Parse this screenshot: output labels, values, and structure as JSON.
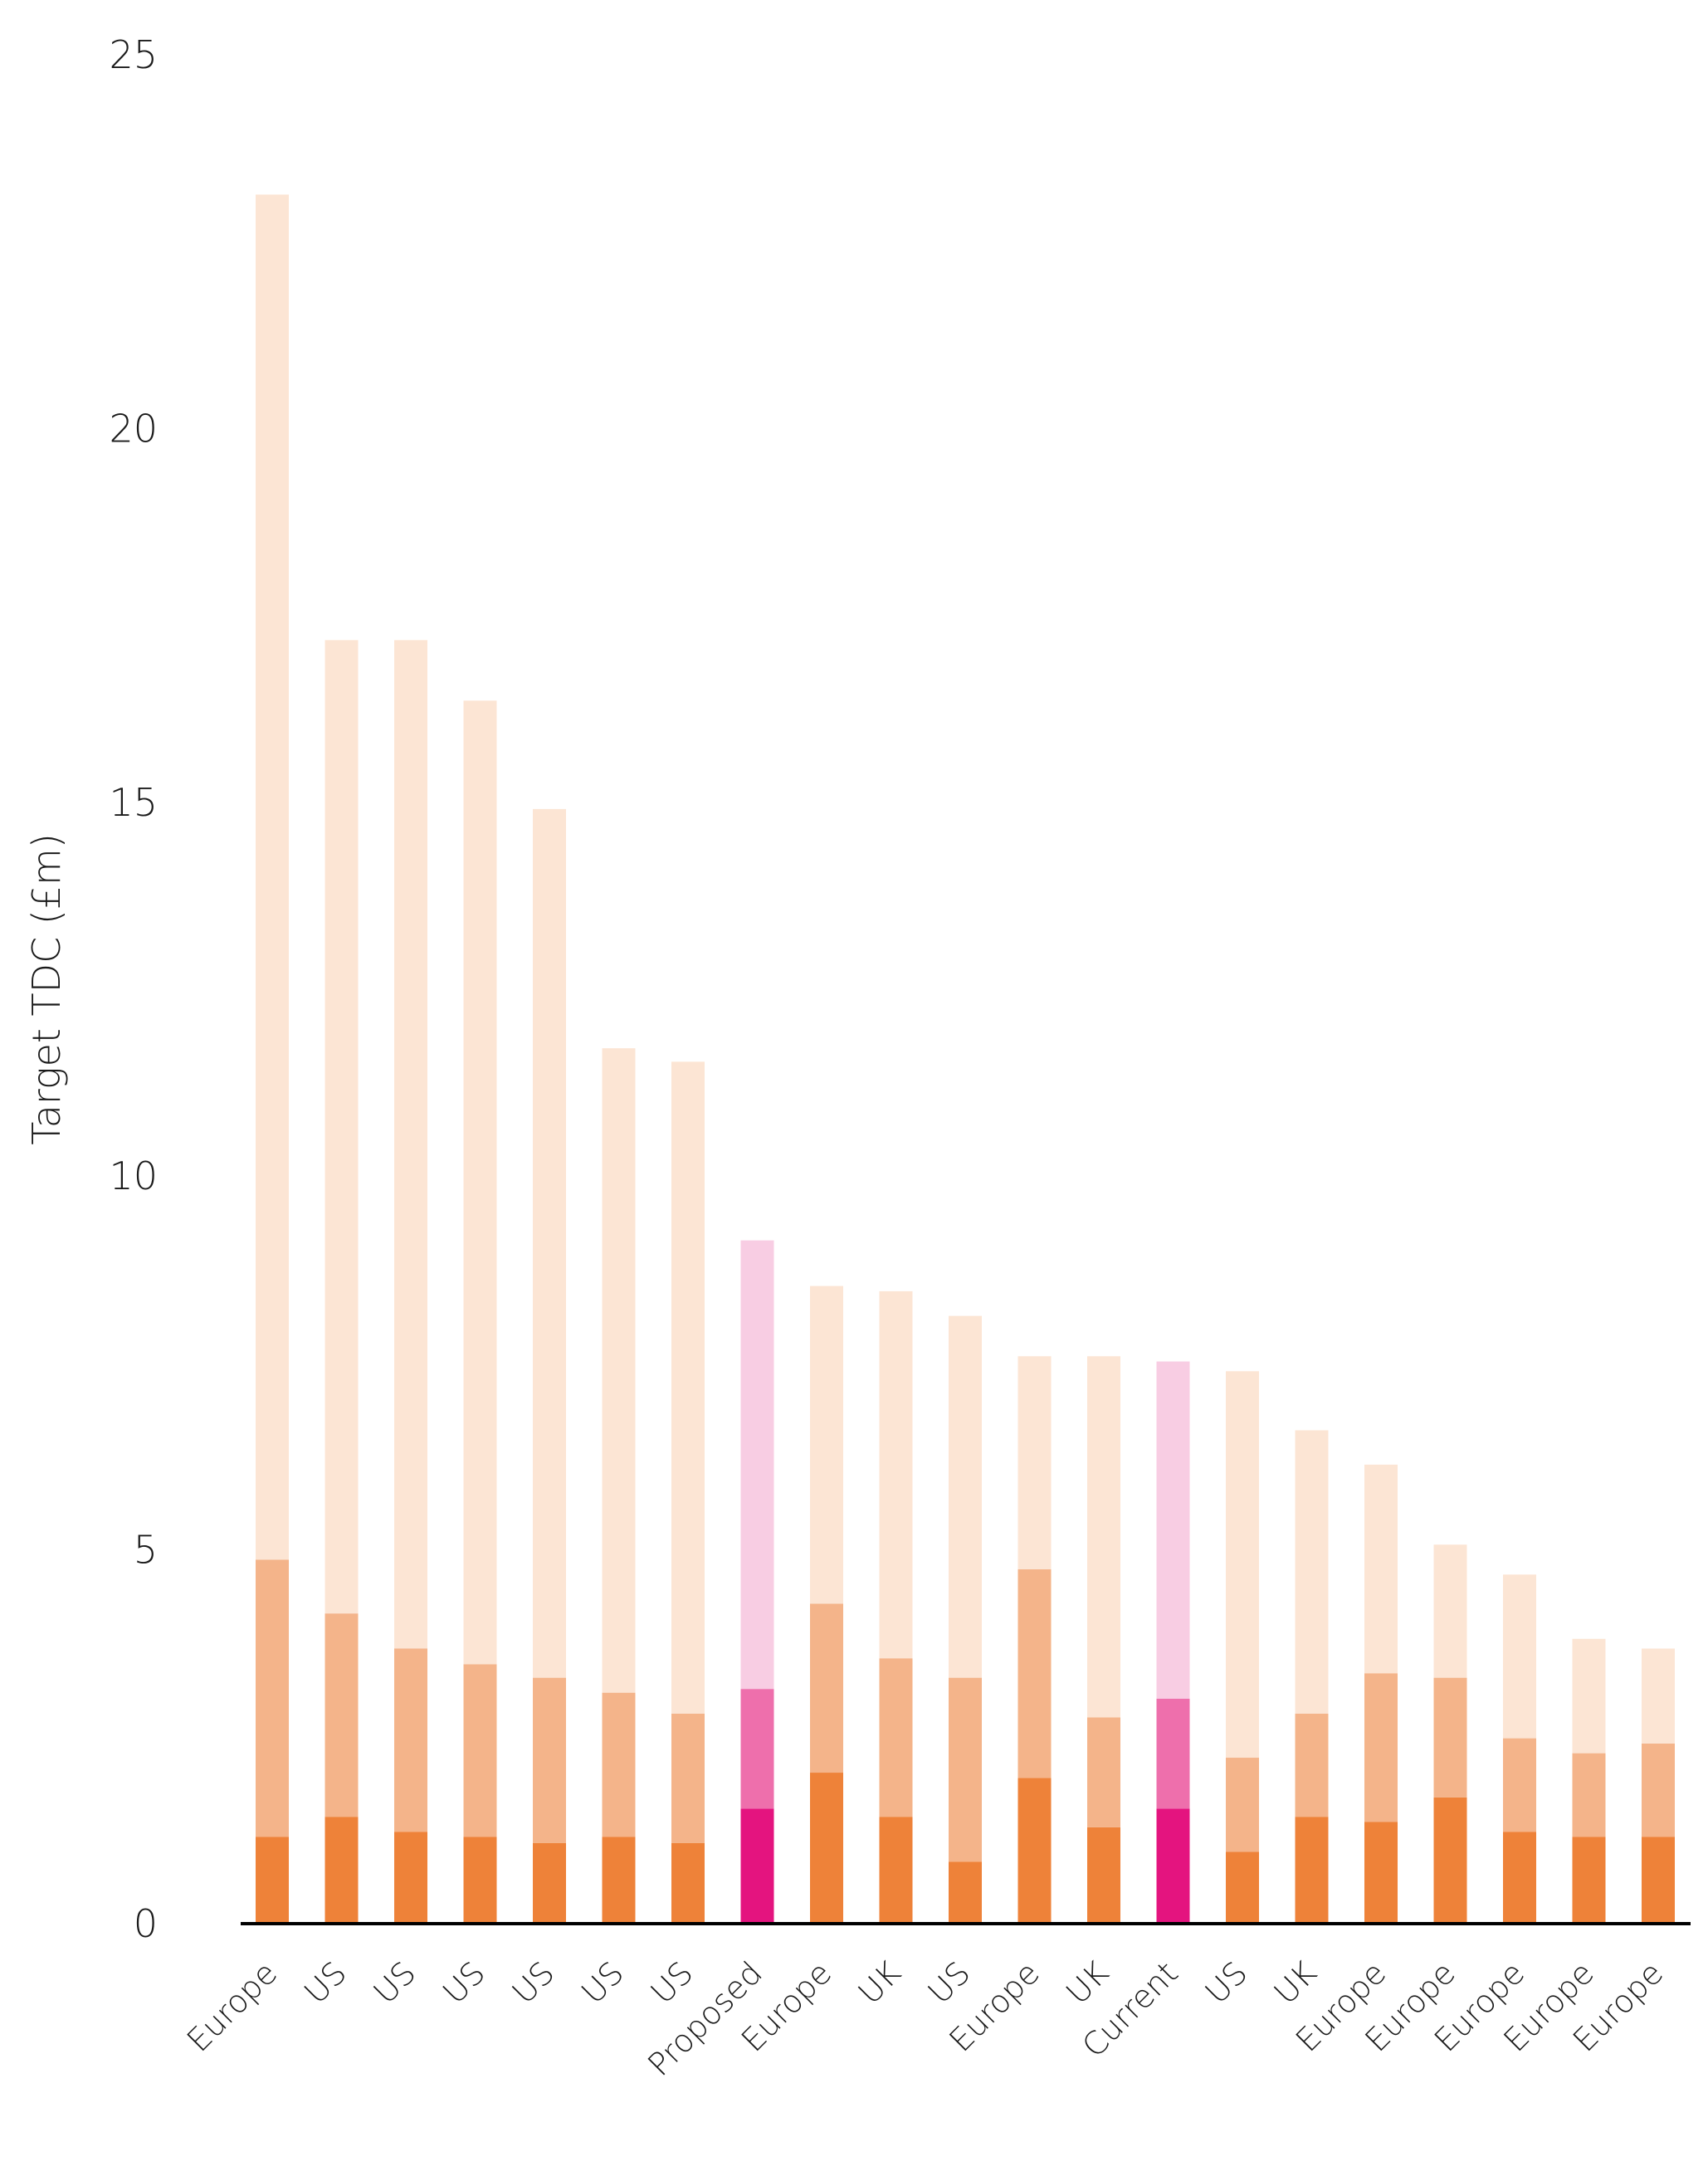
{
  "chart_data": {
    "type": "stacked-bar",
    "y_label": "Target TDC (£m)",
    "categories": [
      "Europe",
      "US",
      "US",
      "US",
      "US",
      "US",
      "US",
      "Proposed",
      "Europe",
      "UK",
      "US",
      "Europe",
      "UK",
      "Current",
      "US",
      "UK",
      "Europe",
      "Europe",
      "Europe",
      "Europe",
      "Europe"
    ],
    "series": [
      {
        "color": "#ee8239",
        "colors": [
          "#ee8239",
          "#ee8239",
          "#ee8239",
          "#ee8239",
          "#ee8239",
          "#ee8239",
          "#ee8239",
          "#e4147f",
          "#ee8239",
          "#ee8239",
          "#ee8239",
          "#ee8239",
          "#ee8239",
          "#e4147f",
          "#ee8239",
          "#ee8239",
          "#ee8239",
          "#ee8239",
          "#ee8239",
          "#ee8239",
          "#ee8239"
        ],
        "values": [
          1.16,
          1.43,
          1.23,
          1.16,
          1.08,
          1.16,
          1.08,
          1.54,
          2.02,
          1.43,
          0.83,
          1.95,
          1.29,
          1.54,
          0.96,
          1.43,
          1.36,
          1.69,
          1.23,
          1.16,
          1.16
        ]
      },
      {
        "color": "#f4b48a",
        "colors": [
          "#f4b48a",
          "#f4b48a",
          "#f4b48a",
          "#f4b48a",
          "#f4b48a",
          "#f4b48a",
          "#f4b48a",
          "#ee6fac",
          "#f4b48a",
          "#f4b48a",
          "#f4b48a",
          "#f4b48a",
          "#f4b48a",
          "#ee6fac",
          "#f4b48a",
          "#f4b48a",
          "#f4b48a",
          "#f4b48a",
          "#f4b48a",
          "#f4b48a",
          "#f4b48a"
        ],
        "values": [
          3.71,
          2.72,
          2.45,
          2.31,
          2.21,
          1.93,
          1.73,
          1.6,
          2.26,
          2.12,
          2.46,
          2.79,
          1.47,
          1.47,
          1.26,
          1.38,
          1.99,
          1.6,
          1.25,
          1.12,
          1.25
        ]
      },
      {
        "color": "#fce5d4",
        "colors": [
          "#fce5d4",
          "#fce5d4",
          "#fce5d4",
          "#fce5d4",
          "#fce5d4",
          "#fce5d4",
          "#fce5d4",
          "#f8cde3",
          "#fce5d4",
          "#fce5d4",
          "#fce5d4",
          "#fce5d4",
          "#fce5d4",
          "#f8cde3",
          "#fce5d4",
          "#fce5d4",
          "#fce5d4",
          "#fce5d4",
          "#fce5d4",
          "#fce5d4",
          "#fce5d4"
        ],
        "values": [
          18.26,
          13.02,
          13.49,
          12.89,
          11.62,
          8.62,
          8.72,
          6.0,
          4.25,
          4.91,
          4.84,
          2.85,
          4.83,
          4.51,
          5.17,
          3.79,
          2.79,
          1.78,
          2.19,
          1.53,
          1.27
        ]
      }
    ],
    "ylim": [
      0,
      25
    ],
    "yticks": [
      0,
      5,
      10,
      15,
      20,
      25
    ],
    "grid": false
  }
}
